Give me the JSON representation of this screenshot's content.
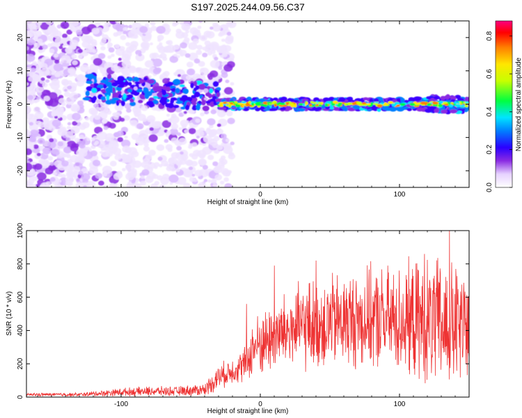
{
  "chart_data": [
    {
      "type": "heatmap",
      "title": "S197.2025.244.09.56.C37",
      "xlabel": "Height of straight line (km)",
      "ylabel": "Frequency (Hz)",
      "xlim": [
        -168,
        150
      ],
      "ylim": [
        -25,
        25
      ],
      "xticks": [
        -100,
        0,
        100
      ],
      "yticks": [
        -20,
        -10,
        0,
        10,
        20
      ],
      "colorbar": {
        "label": "Normalized spectral amplitude",
        "range": [
          0.0,
          0.88
        ],
        "ticks": [
          0.0,
          0.2,
          0.4,
          0.6,
          0.8
        ]
      },
      "features": {
        "noise_region_x": [
          -168,
          -30
        ],
        "signal_band_x": [
          -30,
          150
        ],
        "signal_band_center_hz": 0,
        "signal_band_halfwidth_hz": 1.5,
        "transition_x": -30
      }
    },
    {
      "type": "line",
      "xlabel": "Height of straight line (km)",
      "ylabel": "SNR (10 * v/v)",
      "xlim": [
        -168,
        150
      ],
      "ylim": [
        0,
        1000
      ],
      "xticks": [
        -100,
        0,
        100
      ],
      "yticks": [
        0,
        200,
        400,
        600,
        800,
        1000
      ],
      "color": "#ee3333",
      "envelope": {
        "x": [
          -168,
          -130,
          -100,
          -80,
          -60,
          -40,
          -30,
          -20,
          -10,
          -5,
          0,
          10,
          20,
          40,
          60,
          80,
          100,
          120,
          130,
          140,
          150
        ],
        "mean": [
          15,
          15,
          30,
          35,
          35,
          45,
          120,
          160,
          200,
          300,
          320,
          360,
          400,
          440,
          460,
          470,
          460,
          450,
          430,
          420,
          400
        ],
        "spread": [
          10,
          12,
          25,
          30,
          30,
          40,
          80,
          80,
          120,
          180,
          200,
          220,
          250,
          300,
          300,
          320,
          340,
          400,
          420,
          400,
          380
        ]
      },
      "peaks": [
        {
          "x": -10,
          "y": 560
        },
        {
          "x": 10,
          "y": 790
        },
        {
          "x": 40,
          "y": 820
        },
        {
          "x": 118,
          "y": 860
        },
        {
          "x": 136,
          "y": 1000
        }
      ]
    }
  ]
}
